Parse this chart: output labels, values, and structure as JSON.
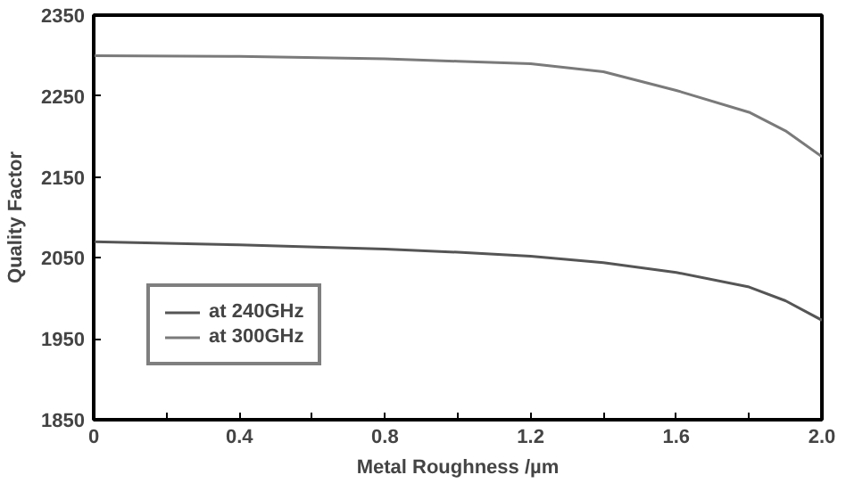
{
  "chart_data": {
    "type": "line",
    "xlabel": "Metal Roughness /µm",
    "ylabel": "Quality Factor",
    "xlim": [
      0,
      2.0
    ],
    "ylim": [
      1850,
      2350
    ],
    "xticks": [
      0,
      {
        "value": 0.2,
        "label": null
      },
      0.4,
      {
        "value": 0.6,
        "label": null
      },
      0.8,
      {
        "value": 1.0,
        "label": null
      },
      1.2,
      {
        "value": 1.4,
        "label": null
      },
      1.6,
      {
        "value": 1.8,
        "label": null
      },
      {
        "value": 2.0,
        "label": "2.0"
      }
    ],
    "yticks": [
      1850,
      1950,
      2050,
      2150,
      2250,
      2350
    ],
    "grid": false,
    "legend": "bottom left",
    "marker": "none",
    "line_style": "solid",
    "series": [
      {
        "name": "at 240GHz",
        "color": "#555555",
        "x": [
          0,
          0.4,
          0.8,
          1.0,
          1.2,
          1.4,
          1.6,
          1.8,
          1.9,
          2.0
        ],
        "values": [
          2070,
          2066,
          2061,
          2057,
          2052,
          2044,
          2032,
          2014,
          1997,
          1973
        ]
      },
      {
        "name": "at 300GHz",
        "color": "#7a7a7a",
        "x": [
          0,
          0.4,
          0.8,
          1.0,
          1.2,
          1.4,
          1.6,
          1.8,
          1.9,
          2.0
        ],
        "values": [
          2300,
          2299,
          2296,
          2293,
          2290,
          2280,
          2257,
          2230,
          2207,
          2175
        ]
      }
    ]
  }
}
